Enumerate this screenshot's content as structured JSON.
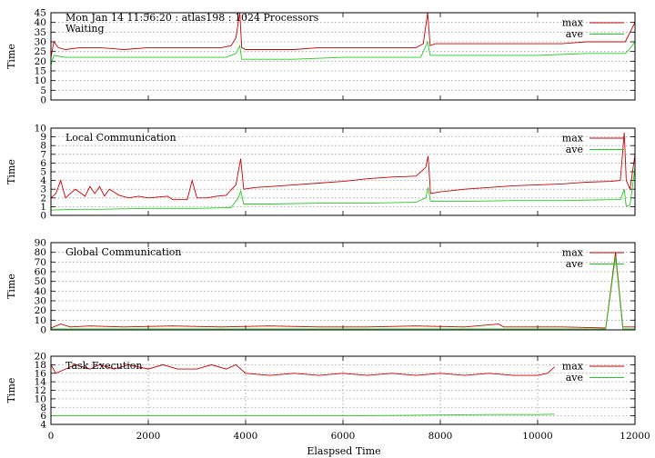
{
  "header": "Mon Jan 14 11:56:20 : atlas198 : 1024 Processors",
  "xlabel": "Elaspsed Time",
  "x_ticks": [
    0,
    2000,
    4000,
    6000,
    8000,
    10000,
    12000
  ],
  "xlim": [
    0,
    12000
  ],
  "colors": {
    "max": "#cc0000",
    "ave": "#22cc22",
    "grid": "#999999"
  },
  "chart_data": [
    {
      "type": "line",
      "title": "Waiting",
      "ylabel": "Time",
      "ylim": [
        0,
        45
      ],
      "y_ticks": [
        0,
        5,
        10,
        15,
        20,
        25,
        30,
        35,
        40,
        45
      ],
      "grid": "horizontal",
      "legend": "top-right",
      "series": [
        {
          "name": "max",
          "points": [
            [
              0,
              22
            ],
            [
              60,
              30
            ],
            [
              150,
              27
            ],
            [
              300,
              26
            ],
            [
              600,
              27
            ],
            [
              1000,
              27
            ],
            [
              1500,
              26
            ],
            [
              2000,
              27
            ],
            [
              2500,
              27
            ],
            [
              3000,
              27
            ],
            [
              3500,
              27
            ],
            [
              3700,
              28
            ],
            [
              3800,
              32
            ],
            [
              3880,
              45
            ],
            [
              3920,
              27
            ],
            [
              4000,
              26
            ],
            [
              4500,
              26
            ],
            [
              5000,
              26
            ],
            [
              5500,
              27
            ],
            [
              6000,
              27
            ],
            [
              6500,
              27
            ],
            [
              7000,
              27
            ],
            [
              7500,
              27
            ],
            [
              7650,
              29
            ],
            [
              7740,
              45
            ],
            [
              7790,
              28
            ],
            [
              7900,
              29
            ],
            [
              8500,
              29
            ],
            [
              9000,
              29
            ],
            [
              9500,
              29
            ],
            [
              10000,
              29
            ],
            [
              10500,
              29
            ],
            [
              11000,
              30
            ],
            [
              11500,
              30
            ],
            [
              11800,
              30
            ],
            [
              11880,
              34
            ],
            [
              12000,
              40
            ]
          ]
        },
        {
          "name": "ave",
          "points": [
            [
              0,
              18
            ],
            [
              60,
              23
            ],
            [
              300,
              22
            ],
            [
              1000,
              22
            ],
            [
              2000,
              22
            ],
            [
              3000,
              22
            ],
            [
              3600,
              22
            ],
            [
              3800,
              24
            ],
            [
              3880,
              28
            ],
            [
              3920,
              21
            ],
            [
              4000,
              21
            ],
            [
              5000,
              21
            ],
            [
              6000,
              22
            ],
            [
              7000,
              22
            ],
            [
              7600,
              22
            ],
            [
              7740,
              30
            ],
            [
              7790,
              23
            ],
            [
              8000,
              23
            ],
            [
              9000,
              23
            ],
            [
              10000,
              23
            ],
            [
              11000,
              24
            ],
            [
              11800,
              24
            ],
            [
              11880,
              26
            ],
            [
              12000,
              30
            ]
          ]
        }
      ]
    },
    {
      "type": "line",
      "title": "Local Communication",
      "ylabel": "Time",
      "ylim": [
        0,
        10
      ],
      "y_ticks": [
        0,
        1,
        2,
        3,
        4,
        5,
        6,
        7,
        8,
        9,
        10
      ],
      "grid": "horizontal",
      "legend": "top-right",
      "series": [
        {
          "name": "max",
          "points": [
            [
              0,
              2
            ],
            [
              100,
              2.5
            ],
            [
              200,
              4
            ],
            [
              300,
              2
            ],
            [
              500,
              3
            ],
            [
              700,
              2.2
            ],
            [
              800,
              3.3
            ],
            [
              900,
              2.5
            ],
            [
              1000,
              3.3
            ],
            [
              1100,
              2.2
            ],
            [
              1200,
              3
            ],
            [
              1400,
              2.3
            ],
            [
              1600,
              2
            ],
            [
              1800,
              2.2
            ],
            [
              2000,
              2
            ],
            [
              2200,
              2.1
            ],
            [
              2400,
              2.2
            ],
            [
              2500,
              1.8
            ],
            [
              2800,
              1.8
            ],
            [
              2900,
              4
            ],
            [
              3000,
              2
            ],
            [
              3200,
              2
            ],
            [
              3400,
              2.2
            ],
            [
              3600,
              2.3
            ],
            [
              3800,
              3.5
            ],
            [
              3900,
              6.5
            ],
            [
              3960,
              3
            ],
            [
              4200,
              3.2
            ],
            [
              4500,
              3.3
            ],
            [
              5000,
              3.5
            ],
            [
              5500,
              3.7
            ],
            [
              6000,
              3.9
            ],
            [
              6500,
              4.2
            ],
            [
              7000,
              4.4
            ],
            [
              7500,
              4.5
            ],
            [
              7700,
              5.5
            ],
            [
              7750,
              6.8
            ],
            [
              7800,
              2.5
            ],
            [
              8000,
              2.7
            ],
            [
              8500,
              3
            ],
            [
              9000,
              3.2
            ],
            [
              9500,
              3.4
            ],
            [
              10000,
              3.5
            ],
            [
              10500,
              3.6
            ],
            [
              11000,
              3.8
            ],
            [
              11500,
              3.9
            ],
            [
              11700,
              4
            ],
            [
              11780,
              9.5
            ],
            [
              11820,
              4
            ],
            [
              11900,
              3
            ],
            [
              12000,
              7
            ]
          ]
        },
        {
          "name": "ave",
          "points": [
            [
              0,
              0.6
            ],
            [
              500,
              0.7
            ],
            [
              1000,
              0.7
            ],
            [
              2000,
              0.8
            ],
            [
              3000,
              0.8
            ],
            [
              3700,
              0.9
            ],
            [
              3850,
              2
            ],
            [
              3900,
              2.8
            ],
            [
              3960,
              1.3
            ],
            [
              4500,
              1.3
            ],
            [
              5500,
              1.4
            ],
            [
              6500,
              1.4
            ],
            [
              7500,
              1.5
            ],
            [
              7700,
              2
            ],
            [
              7750,
              3.2
            ],
            [
              7800,
              1.6
            ],
            [
              8500,
              1.6
            ],
            [
              9500,
              1.7
            ],
            [
              10500,
              1.7
            ],
            [
              11500,
              1.8
            ],
            [
              11700,
              1.8
            ],
            [
              11780,
              3
            ],
            [
              11820,
              1
            ],
            [
              11900,
              1.2
            ],
            [
              12000,
              5.5
            ]
          ]
        }
      ]
    },
    {
      "type": "line",
      "title": "Global Communication",
      "ylabel": "Time",
      "ylim": [
        0,
        90
      ],
      "y_ticks": [
        0,
        10,
        20,
        30,
        40,
        50,
        60,
        70,
        80,
        90
      ],
      "grid": "horizontal",
      "legend": "top-right",
      "series": [
        {
          "name": "max",
          "points": [
            [
              0,
              2
            ],
            [
              200,
              6
            ],
            [
              400,
              3
            ],
            [
              800,
              4
            ],
            [
              1500,
              3
            ],
            [
              2500,
              4
            ],
            [
              3500,
              3
            ],
            [
              4500,
              4
            ],
            [
              5500,
              3
            ],
            [
              6500,
              3
            ],
            [
              7500,
              4
            ],
            [
              8500,
              3
            ],
            [
              9200,
              6
            ],
            [
              9300,
              3
            ],
            [
              10500,
              3
            ],
            [
              11400,
              2
            ],
            [
              11600,
              80
            ],
            [
              11750,
              3
            ],
            [
              12000,
              3
            ]
          ]
        },
        {
          "name": "ave",
          "points": [
            [
              0,
              1
            ],
            [
              1000,
              1
            ],
            [
              3000,
              1
            ],
            [
              5000,
              1
            ],
            [
              7000,
              1
            ],
            [
              9000,
              1
            ],
            [
              11000,
              1
            ],
            [
              11400,
              1
            ],
            [
              11600,
              76
            ],
            [
              11750,
              1
            ],
            [
              12000,
              1
            ]
          ]
        }
      ]
    },
    {
      "type": "line",
      "title": "Task Execution",
      "ylabel": "Time",
      "ylim": [
        4,
        20
      ],
      "y_ticks": [
        4,
        6,
        8,
        10,
        12,
        14,
        16,
        18,
        20
      ],
      "grid": "both",
      "legend": "top-right",
      "series": [
        {
          "name": "max",
          "points": [
            [
              0,
              18
            ],
            [
              100,
              16
            ],
            [
              300,
              17
            ],
            [
              500,
              18
            ],
            [
              800,
              17
            ],
            [
              1000,
              18
            ],
            [
              1300,
              17
            ],
            [
              1600,
              18
            ],
            [
              2000,
              17
            ],
            [
              2300,
              18
            ],
            [
              2600,
              17
            ],
            [
              3000,
              17
            ],
            [
              3300,
              18
            ],
            [
              3600,
              17
            ],
            [
              3800,
              18
            ],
            [
              4000,
              16
            ],
            [
              4500,
              15.5
            ],
            [
              5000,
              16
            ],
            [
              5500,
              15.5
            ],
            [
              6000,
              16
            ],
            [
              6500,
              15.5
            ],
            [
              7000,
              16
            ],
            [
              7500,
              15.5
            ],
            [
              8000,
              16
            ],
            [
              8500,
              15.5
            ],
            [
              9000,
              16
            ],
            [
              9500,
              15.5
            ],
            [
              10000,
              15.5
            ],
            [
              10200,
              16
            ],
            [
              10350,
              17.5
            ]
          ]
        },
        {
          "name": "ave",
          "points": [
            [
              0,
              6
            ],
            [
              1000,
              6
            ],
            [
              2000,
              6
            ],
            [
              3000,
              6
            ],
            [
              4000,
              6
            ],
            [
              5000,
              6
            ],
            [
              6000,
              6
            ],
            [
              7000,
              6.1
            ],
            [
              8000,
              6.2
            ],
            [
              9000,
              6.3
            ],
            [
              10000,
              6.3
            ],
            [
              10350,
              6.4
            ]
          ]
        }
      ]
    }
  ]
}
